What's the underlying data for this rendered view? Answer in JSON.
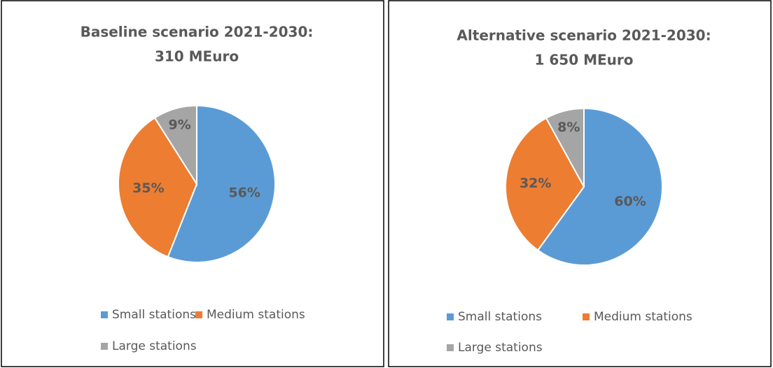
{
  "chart_data": [
    {
      "type": "pie",
      "title": [
        "Baseline scenario 2021-2030:",
        "310 MEuro"
      ],
      "series": [
        {
          "name": "Small stations",
          "color": "#5b9bd5"
        },
        {
          "name": "Medium stations",
          "color": "#ed7d31"
        },
        {
          "name": "Large stations",
          "color": "#a5a5a5"
        }
      ],
      "values": [
        56,
        35,
        9
      ],
      "value_labels": [
        "56%",
        "35%",
        "9%"
      ],
      "legend": "bottom"
    },
    {
      "type": "pie",
      "title": [
        "Alternative scenario 2021-2030:",
        "1 650 MEuro"
      ],
      "series": [
        {
          "name": "Small stations",
          "color": "#5b9bd5"
        },
        {
          "name": "Medium stations",
          "color": "#ed7d31"
        },
        {
          "name": "Large stations",
          "color": "#a5a5a5"
        }
      ],
      "values": [
        60,
        32,
        8
      ],
      "value_labels": [
        "60%",
        "32%",
        "8%"
      ],
      "legend": "bottom"
    }
  ]
}
